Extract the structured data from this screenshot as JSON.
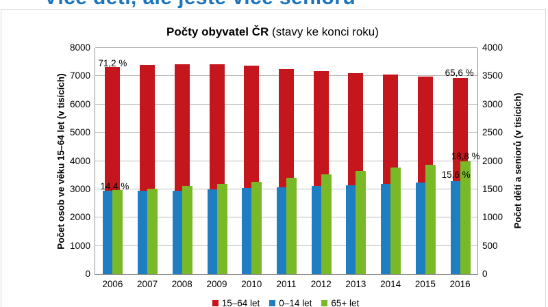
{
  "page": {
    "heading": "Více dětí, ale ještě více seniorů"
  },
  "chart": {
    "title_bold": "Počty obyvatel ČR",
    "title_rest": "(stavy ke konci roku)"
  },
  "chart_data": {
    "type": "bar",
    "title": "Počty obyvatel ČR (stavy ke konci roku)",
    "categories": [
      2006,
      2007,
      2008,
      2009,
      2010,
      2011,
      2012,
      2013,
      2014,
      2015,
      2016
    ],
    "series": [
      {
        "name": "15–64 let",
        "axis": "left",
        "color": "#c4161c",
        "values": [
          7325,
          7391,
          7431,
          7414,
          7379,
          7263,
          7188,
          7109,
          7057,
          6998,
          6943
        ]
      },
      {
        "name": "0–14 let",
        "axis": "right",
        "color": "#1f7ec2",
        "values": [
          1480,
          1477,
          1480,
          1494,
          1518,
          1541,
          1560,
          1577,
          1601,
          1624,
          1647
        ]
      },
      {
        "name": "65+ let",
        "axis": "right",
        "color": "#79b928",
        "values": [
          1482,
          1513,
          1556,
          1599,
          1636,
          1701,
          1768,
          1826,
          1880,
          1932,
          1989
        ]
      }
    ],
    "left_axis": {
      "label": "Počet osob ve věku 15–64 let (v tisících)",
      "min": 0,
      "max": 8000,
      "step": 1000
    },
    "right_axis": {
      "label": "Počet dětí a seniorů (v tisících)",
      "min": 0,
      "max": 4000,
      "step": 500
    },
    "grid": true,
    "legend_position": "bottom",
    "legend": [
      "15–64 let",
      "0–14 let",
      "65+ let"
    ],
    "annotations": [
      {
        "text": "71,2 %",
        "year": 2006,
        "series": 0
      },
      {
        "text": "14,4 %",
        "year": 2006,
        "series": 1
      },
      {
        "text": "65,6 %",
        "year": 2016,
        "series": 0
      },
      {
        "text": "18,8 %",
        "year": 2016,
        "series": 2
      },
      {
        "text": "15,6 %",
        "year": 2016,
        "series": 1
      }
    ]
  }
}
